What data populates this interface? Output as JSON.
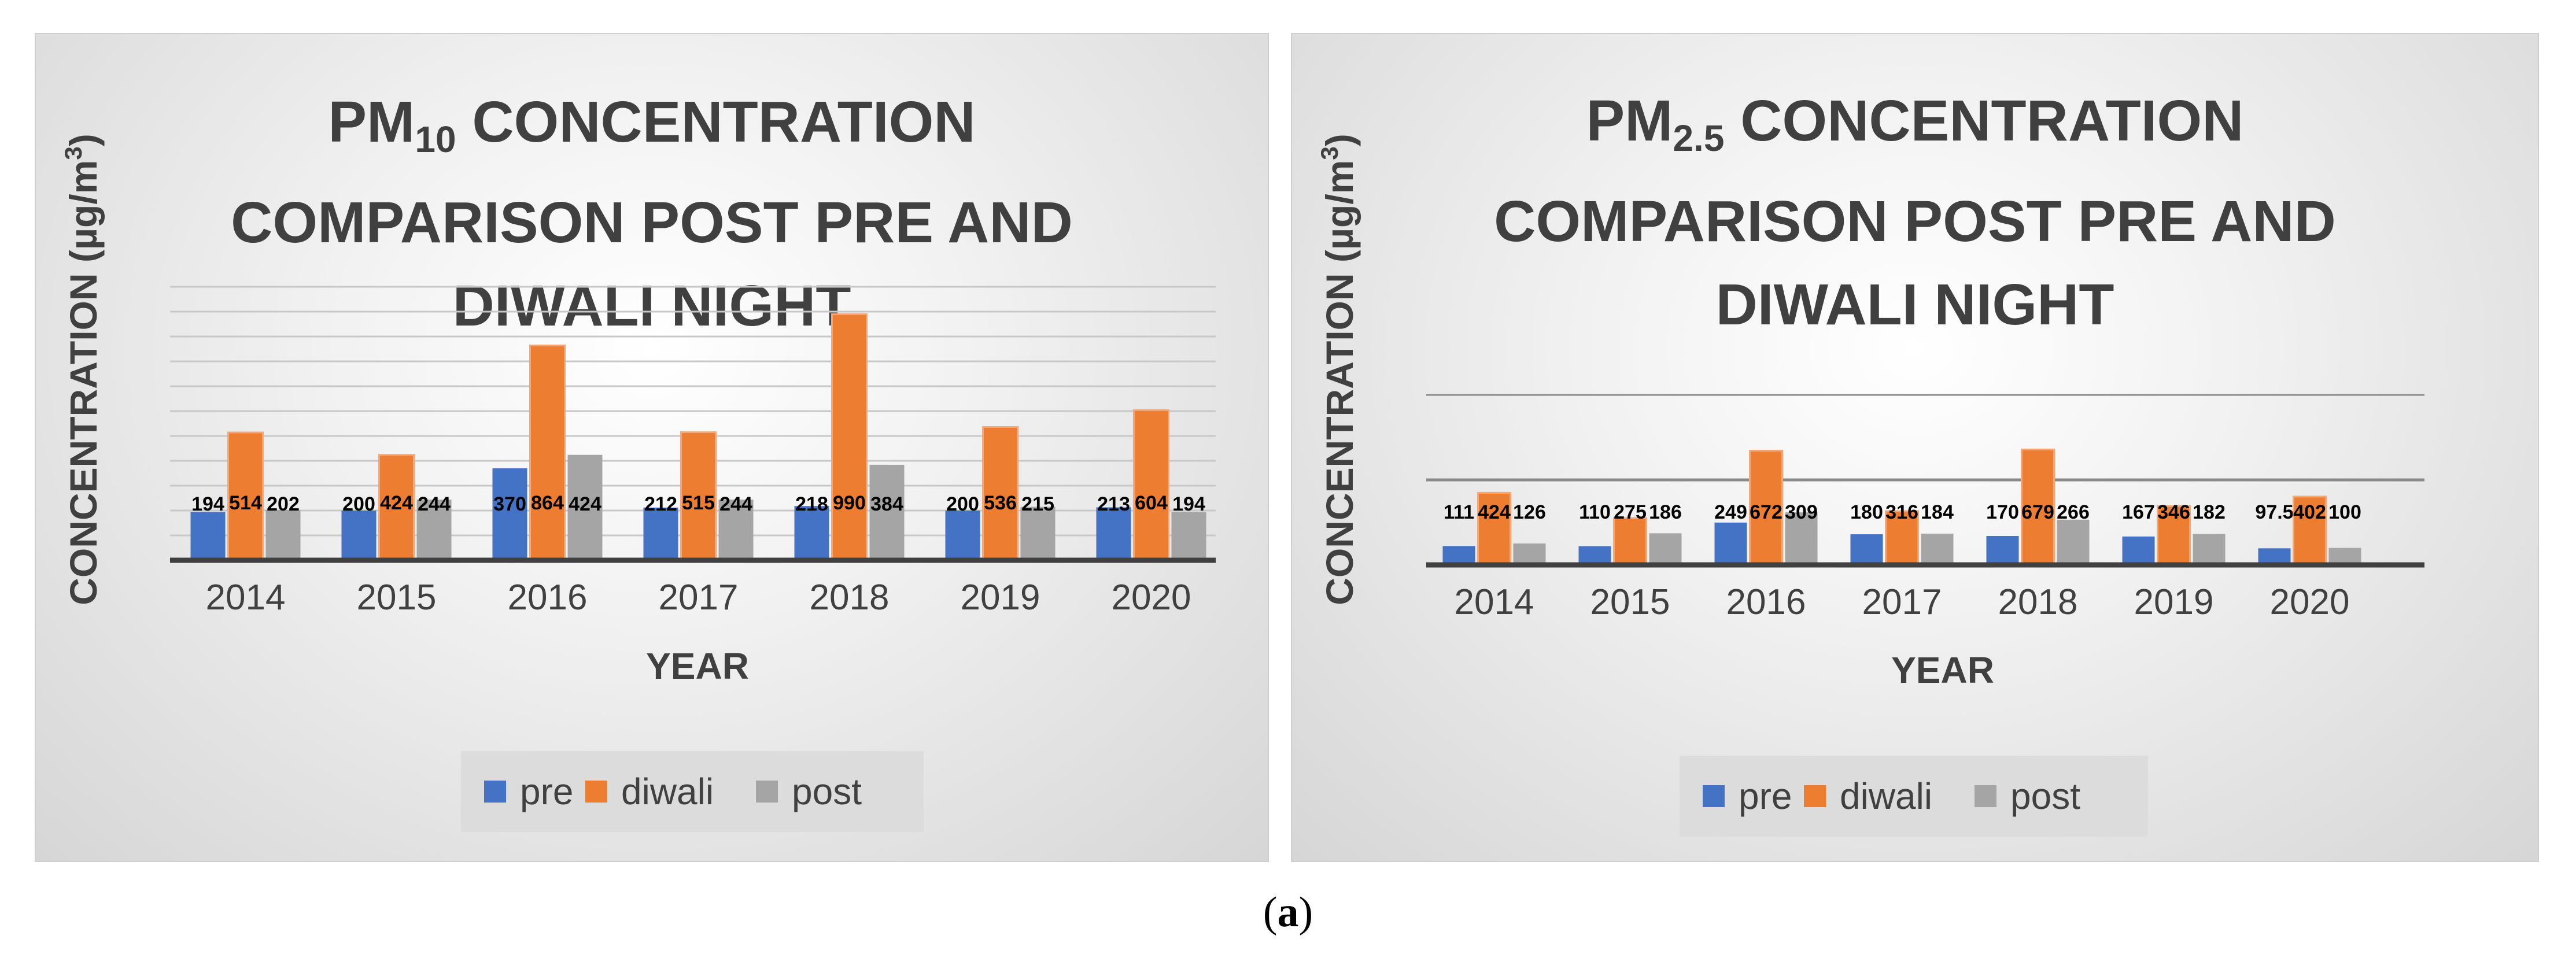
{
  "figure_caption": {
    "open": "(",
    "letter": "a",
    "close": ")"
  },
  "colors": {
    "pre": "#4472C4",
    "diwali": "#ED7D31",
    "post": "#A5A5A5",
    "text": "#404040"
  },
  "chart_data": [
    {
      "type": "bar",
      "title": {
        "line1_main": "PM",
        "line1_sub": "10",
        "line1_rest": " CONCENTRATION",
        "line2": "COMPARISON POST PRE AND",
        "line3": "DIWALI NIGHT"
      },
      "ylabel": {
        "main": "CONCENTRATION (µg/m",
        "sup": "3",
        "close": ")"
      },
      "xlabel": "YEAR",
      "categories": [
        "2014",
        "2015",
        "2016",
        "2017",
        "2018",
        "2019",
        "2020"
      ],
      "series": [
        {
          "key": "pre",
          "name": "pre",
          "values": [
            194,
            200,
            370,
            212,
            218,
            200,
            213
          ],
          "labels": [
            "194",
            "200",
            "370",
            "212",
            "218",
            "200",
            "213"
          ]
        },
        {
          "key": "diwali",
          "name": "diwali",
          "values": [
            514,
            424,
            864,
            515,
            990,
            536,
            604
          ],
          "labels": [
            "514",
            "424",
            "864",
            "515",
            "990",
            "536",
            "604"
          ]
        },
        {
          "key": "post",
          "name": "post",
          "values": [
            202,
            244,
            424,
            244,
            384,
            215,
            194
          ],
          "labels": [
            "202",
            "244",
            "424",
            "244",
            "384",
            "215",
            "194"
          ]
        }
      ],
      "ylim": [
        0,
        1100
      ],
      "gridlines": [
        100,
        200,
        300,
        400,
        500,
        600,
        700,
        800,
        900,
        1000,
        1100
      ],
      "legend": [
        "pre",
        "diwali",
        "post"
      ]
    },
    {
      "type": "bar",
      "title": {
        "line1_main": "PM",
        "line1_sub": "2.5",
        "line1_rest": " CONCENTRATION",
        "line2": "COMPARISON POST PRE AND",
        "line3": "DIWALI NIGHT"
      },
      "ylabel": {
        "main": "CONCENTRATION (µg/m",
        "sup": "3",
        "close": ")"
      },
      "xlabel": "YEAR",
      "categories": [
        "2014",
        "2015",
        "2016",
        "2017",
        "2018",
        "2019",
        "2020"
      ],
      "series": [
        {
          "key": "pre",
          "name": "pre",
          "values": [
            111,
            110,
            249,
            180,
            170,
            167,
            97.5
          ],
          "labels": [
            "111",
            "110",
            "249",
            "180",
            "170",
            "167",
            "97.5"
          ]
        },
        {
          "key": "diwali",
          "name": "diwali",
          "values": [
            424,
            275,
            672,
            316,
            679,
            346,
            402
          ],
          "labels": [
            "424",
            "275",
            "672",
            "316",
            "679",
            "346",
            "402"
          ]
        },
        {
          "key": "post",
          "name": "post",
          "values": [
            126,
            186,
            309,
            184,
            266,
            182,
            100
          ],
          "labels": [
            "126",
            "186",
            "309",
            "184",
            "266",
            "182",
            "100"
          ]
        }
      ],
      "ylim": [
        0,
        1000
      ],
      "gridlines": [
        500,
        1000
      ],
      "legend": [
        "pre",
        "diwali",
        "post"
      ]
    }
  ]
}
